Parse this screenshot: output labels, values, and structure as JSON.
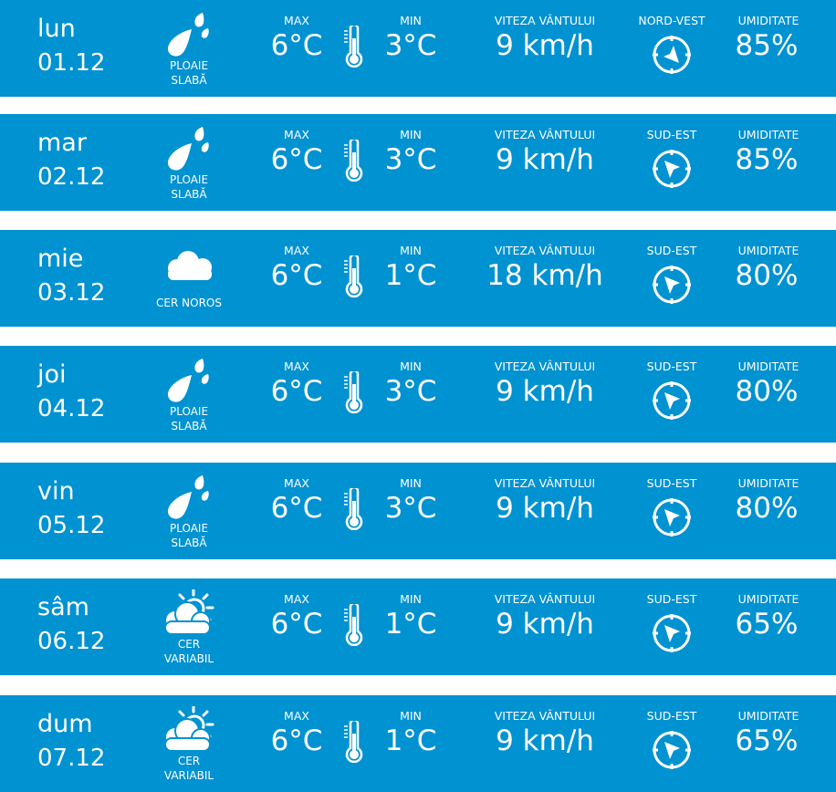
{
  "accent_color": "#0092d1",
  "labels": {
    "max": "MAX",
    "min": "MIN",
    "wind_speed": "VITEZA VÂNTULUI",
    "humidity": "UMIDITATE"
  },
  "days": [
    {
      "day": "lun",
      "date": "01.12",
      "icon": "rain-drops-icon",
      "condition_lines": [
        "PLOAIE",
        "SLABĂ"
      ],
      "max": "6°C",
      "min": "3°C",
      "wind_speed": "9 km/h",
      "wind_dir": "NORD-VEST",
      "humidity": "85%"
    },
    {
      "day": "mar",
      "date": "02.12",
      "icon": "rain-drops-icon",
      "condition_lines": [
        "PLOAIE",
        "SLABĂ"
      ],
      "max": "6°C",
      "min": "3°C",
      "wind_speed": "9 km/h",
      "wind_dir": "SUD-EST",
      "humidity": "85%"
    },
    {
      "day": "mie",
      "date": "03.12",
      "icon": "cloud-icon",
      "condition_lines": [
        "CER NOROS"
      ],
      "max": "6°C",
      "min": "1°C",
      "wind_speed": "18 km/h",
      "wind_dir": "SUD-EST",
      "humidity": "80%"
    },
    {
      "day": "joi",
      "date": "04.12",
      "icon": "rain-drops-icon",
      "condition_lines": [
        "PLOAIE",
        "SLABĂ"
      ],
      "max": "6°C",
      "min": "3°C",
      "wind_speed": "9 km/h",
      "wind_dir": "SUD-EST",
      "humidity": "80%"
    },
    {
      "day": "vin",
      "date": "05.12",
      "icon": "rain-drops-icon",
      "condition_lines": [
        "PLOAIE",
        "SLABĂ"
      ],
      "max": "6°C",
      "min": "3°C",
      "wind_speed": "9 km/h",
      "wind_dir": "SUD-EST",
      "humidity": "80%"
    },
    {
      "day": "sâm",
      "date": "06.12",
      "icon": "sun-cloud-icon",
      "condition_lines": [
        "CER",
        "VARIABIL"
      ],
      "max": "6°C",
      "min": "1°C",
      "wind_speed": "9 km/h",
      "wind_dir": "SUD-EST",
      "humidity": "65%"
    },
    {
      "day": "dum",
      "date": "07.12",
      "icon": "sun-cloud-icon",
      "condition_lines": [
        "CER",
        "VARIABIL"
      ],
      "max": "6°C",
      "min": "1°C",
      "wind_speed": "9 km/h",
      "wind_dir": "SUD-EST",
      "humidity": "65%"
    }
  ]
}
